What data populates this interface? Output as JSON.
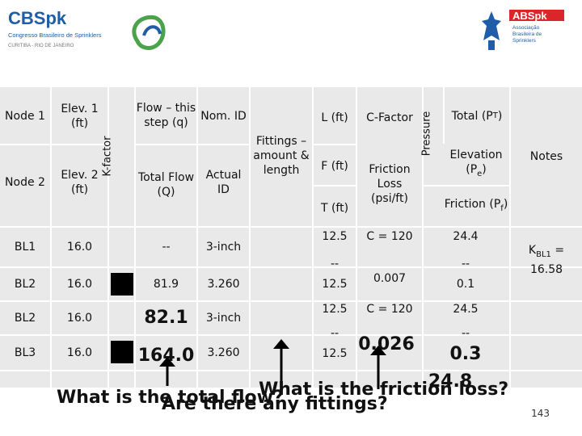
{
  "logos": {
    "left_title": "CBSpk",
    "left_sub1": "Congresso Brasileiro de Sprinklers",
    "left_sub2": "CURITIBA - RIO DE JANEIRO",
    "right_title": "ABSpk",
    "right_sub": "Associação Brasileira de Sprinklers"
  },
  "header": {
    "node1": "Node 1",
    "elev1": "Elev. 1 (ft)",
    "node2": "Node 2",
    "elev2": "Elev. 2 (ft)",
    "kfactor": "K-factor",
    "flow_step": "Flow – this step (q)",
    "total_flow": "Total Flow (Q)",
    "nom_id": "Nom. ID",
    "actual_id": "Actual ID",
    "fittings": "Fittings – amount & length",
    "l_ft": "L (ft)",
    "f_ft": "F (ft)",
    "t_ft": "T (ft)",
    "c_factor": "C-Factor",
    "friction_loss": "Friction Loss (psi/ft)",
    "pressure": "Pressure",
    "total_pt": "Total (P",
    "total_pt_sub": "T",
    "elevation": "Elevation (P",
    "elevation_sub": "e",
    "friction": "Friction (P",
    "friction_sub": "f",
    "notes": "Notes"
  },
  "rows": [
    {
      "node": "BL1",
      "elev": "16.0",
      "flow": "--",
      "id": "3-inch",
      "l": "12.5",
      "f": "--",
      "c": "C = 120",
      "total": "24.4",
      "fric": "--"
    },
    {
      "node": "BL2",
      "elev": "16.0",
      "flow": "81.9",
      "id": "3.260",
      "t": "12.5",
      "loss": "0.007",
      "elevp": "0.1"
    },
    {
      "node": "BL2",
      "elev": "16.0",
      "flow": "82.1",
      "id": "3-inch",
      "l": "12.5",
      "f": "--",
      "c": "C = 120",
      "total": "24.5",
      "fric": "--"
    },
    {
      "node": "BL3",
      "elev": "16.0",
      "flow": "164.0",
      "id": "3.260",
      "t": "12.5",
      "loss": "0.026",
      "elevp": "0.3",
      "frictp": "24.8"
    }
  ],
  "note": {
    "k_prefix": "K",
    "k_sub": "BL1",
    "k_value": " = 16.58"
  },
  "questions": {
    "q1": "What is the total flow?",
    "q2": "Are there any fittings?",
    "q3": "What is the friction loss?"
  },
  "page_number": "143"
}
